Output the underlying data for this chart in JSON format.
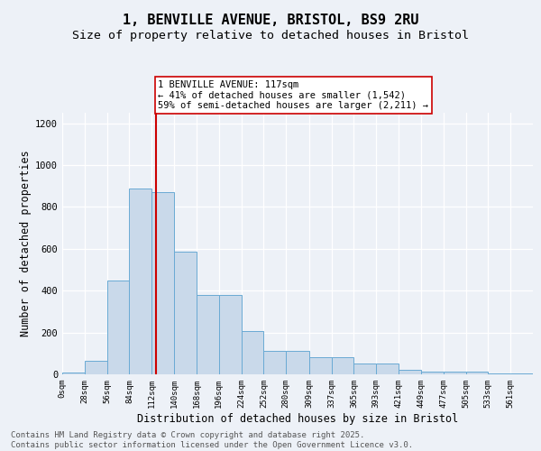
{
  "title_line1": "1, BENVILLE AVENUE, BRISTOL, BS9 2RU",
  "title_line2": "Size of property relative to detached houses in Bristol",
  "xlabel": "Distribution of detached houses by size in Bristol",
  "ylabel": "Number of detached properties",
  "bar_values": [
    8,
    65,
    450,
    890,
    870,
    585,
    380,
    380,
    205,
    110,
    110,
    80,
    80,
    50,
    50,
    20,
    15,
    15,
    13,
    5,
    3
  ],
  "bin_edges": [
    0,
    28,
    56,
    84,
    112,
    140,
    168,
    196,
    224,
    252,
    280,
    309,
    337,
    365,
    393,
    421,
    449,
    477,
    505,
    533,
    561,
    589
  ],
  "bar_color": "#c9d9ea",
  "bar_edge_color": "#6aaad4",
  "property_size": 117,
  "vline_color": "#cc0000",
  "annotation_text": "1 BENVILLE AVENUE: 117sqm\n← 41% of detached houses are smaller (1,542)\n59% of semi-detached houses are larger (2,211) →",
  "annotation_box_color": "#ffffff",
  "annotation_box_edge_color": "#cc0000",
  "ylim": [
    0,
    1250
  ],
  "yticks": [
    0,
    200,
    400,
    600,
    800,
    1000,
    1200
  ],
  "footer_text": "Contains HM Land Registry data © Crown copyright and database right 2025.\nContains public sector information licensed under the Open Government Licence v3.0.",
  "background_color": "#edf1f7",
  "grid_color": "#ffffff",
  "title_fontsize": 11,
  "subtitle_fontsize": 9.5,
  "tick_fontsize": 6.5,
  "label_fontsize": 8.5,
  "footer_fontsize": 6.5,
  "annotation_fontsize": 7.5
}
